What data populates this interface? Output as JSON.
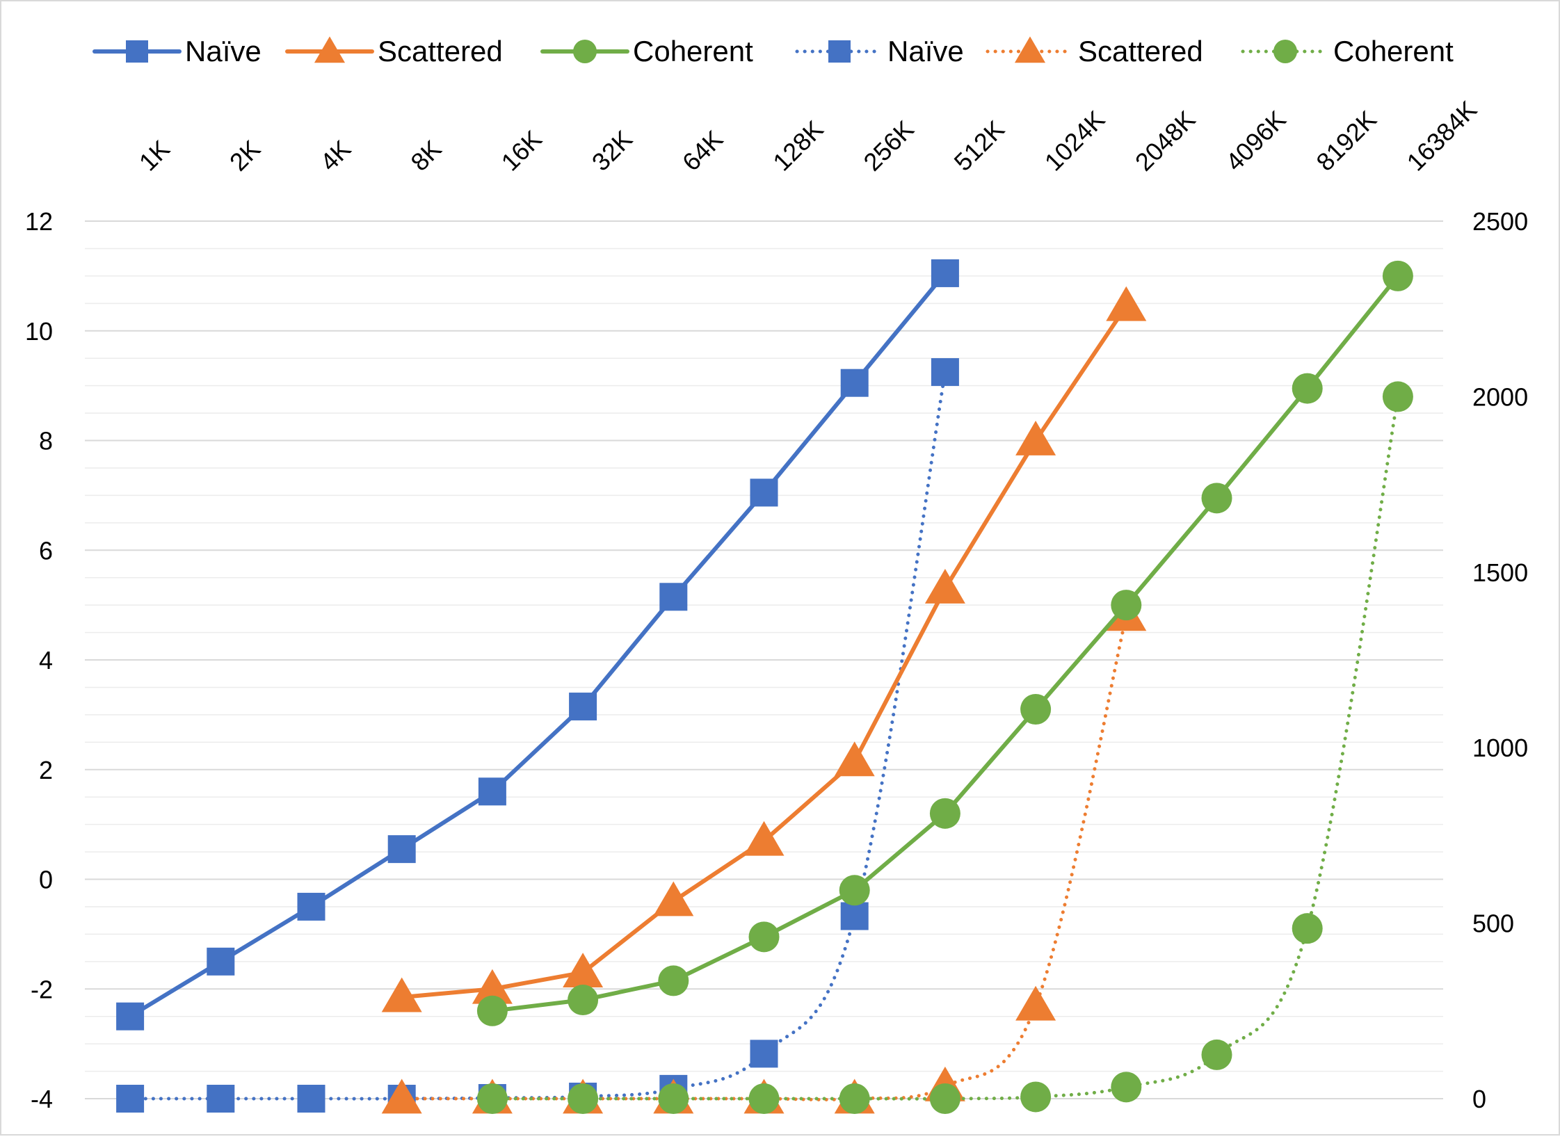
{
  "chart_data": {
    "type": "line",
    "title": "",
    "xlabel": "",
    "ylabel": "",
    "y2label": "",
    "categories": [
      "1K",
      "2K",
      "4K",
      "8K",
      "16K",
      "32K",
      "64K",
      "128K",
      "256K",
      "512K",
      "1024K",
      "2048K",
      "4096K",
      "8192K",
      "16384K"
    ],
    "x_axis_position": "top",
    "x_tick_rotation": -45,
    "y_left": {
      "min": -4,
      "max": 12,
      "step": 2,
      "ticks": [
        "-4",
        "-2",
        "0",
        "2",
        "4",
        "6",
        "8",
        "10",
        "12"
      ]
    },
    "y_right": {
      "min": 0,
      "max": 2500,
      "step": 500,
      "ticks": [
        "0",
        "500",
        "1000",
        "1500",
        "2000",
        "2500"
      ]
    },
    "grid": {
      "major": true,
      "minor": true
    },
    "legend_position": "top",
    "series": [
      {
        "name": "Naïve",
        "axis": "left",
        "line": "solid",
        "marker": "square",
        "color": "#4472C4",
        "values": [
          -2.5,
          -1.5,
          -0.5,
          0.55,
          1.6,
          3.15,
          5.15,
          7.05,
          9.05,
          11.05,
          null,
          null,
          null,
          null,
          null
        ]
      },
      {
        "name": "Scattered",
        "axis": "left",
        "line": "solid",
        "marker": "triangle",
        "color": "#ED7D31",
        "values": [
          null,
          null,
          null,
          -2.15,
          -2.0,
          -1.7,
          -0.4,
          0.7,
          2.15,
          5.3,
          8.0,
          10.45,
          null,
          null,
          null
        ]
      },
      {
        "name": "Coherent",
        "axis": "left",
        "line": "solid",
        "marker": "circle",
        "color": "#70AD47",
        "values": [
          null,
          null,
          null,
          null,
          -2.4,
          -2.2,
          -1.85,
          -1.05,
          -0.2,
          1.2,
          3.1,
          5.0,
          6.95,
          8.95,
          11.0
        ]
      },
      {
        "name": "Naïve",
        "axis": "right",
        "line": "dotted",
        "marker": "square",
        "color": "#4472C4",
        "values": [
          0,
          0,
          0,
          0,
          2,
          6,
          28,
          128,
          520,
          2070,
          null,
          null,
          null,
          null,
          null
        ]
      },
      {
        "name": "Scattered",
        "axis": "right",
        "line": "dotted",
        "marker": "triangle",
        "color": "#ED7D31",
        "values": [
          null,
          null,
          null,
          0,
          0,
          0,
          0,
          0,
          0,
          35,
          265,
          1375,
          null,
          null,
          null
        ]
      },
      {
        "name": "Coherent",
        "axis": "right",
        "line": "dotted",
        "marker": "circle",
        "color": "#70AD47",
        "values": [
          null,
          null,
          null,
          null,
          0,
          0,
          0,
          0,
          0,
          0,
          5,
          33,
          125,
          485,
          2000
        ]
      }
    ]
  }
}
